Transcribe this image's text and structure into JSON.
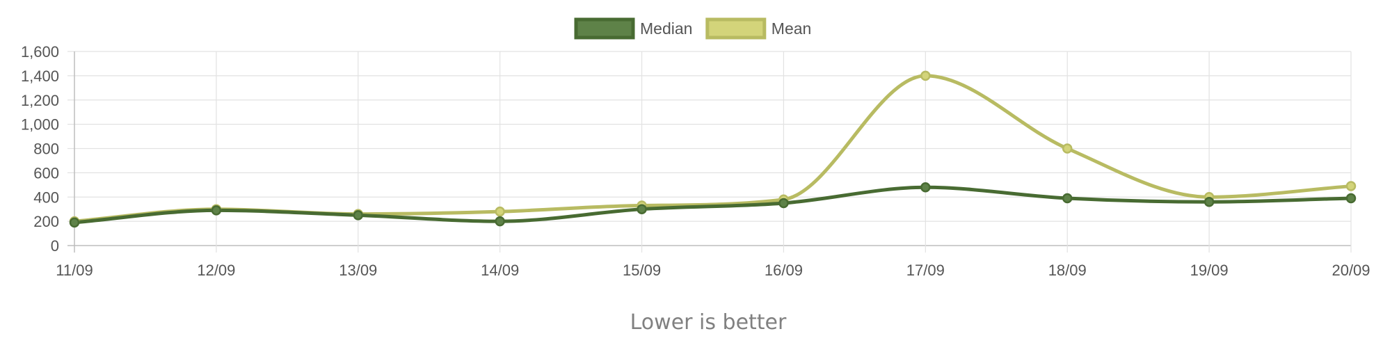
{
  "chart_data": {
    "type": "line",
    "categories": [
      "11/09",
      "12/09",
      "13/09",
      "14/09",
      "15/09",
      "16/09",
      "17/09",
      "18/09",
      "19/09",
      "20/09"
    ],
    "series": [
      {
        "name": "Median",
        "values": [
          190,
          290,
          250,
          200,
          300,
          350,
          480,
          390,
          360,
          390
        ],
        "color": "#486b32",
        "fill": "#5e8248"
      },
      {
        "name": "Mean",
        "values": [
          200,
          300,
          260,
          280,
          330,
          380,
          1400,
          800,
          400,
          490
        ],
        "color": "#b8bb62",
        "fill": "#d3d47a"
      }
    ],
    "ylim": [
      0,
      1600
    ],
    "yticks": [
      "0",
      "200",
      "400",
      "600",
      "800",
      "1,000",
      "1,200",
      "1,400",
      "1,600"
    ],
    "grid": true,
    "legend": "top-center",
    "note": "Lower is better"
  }
}
